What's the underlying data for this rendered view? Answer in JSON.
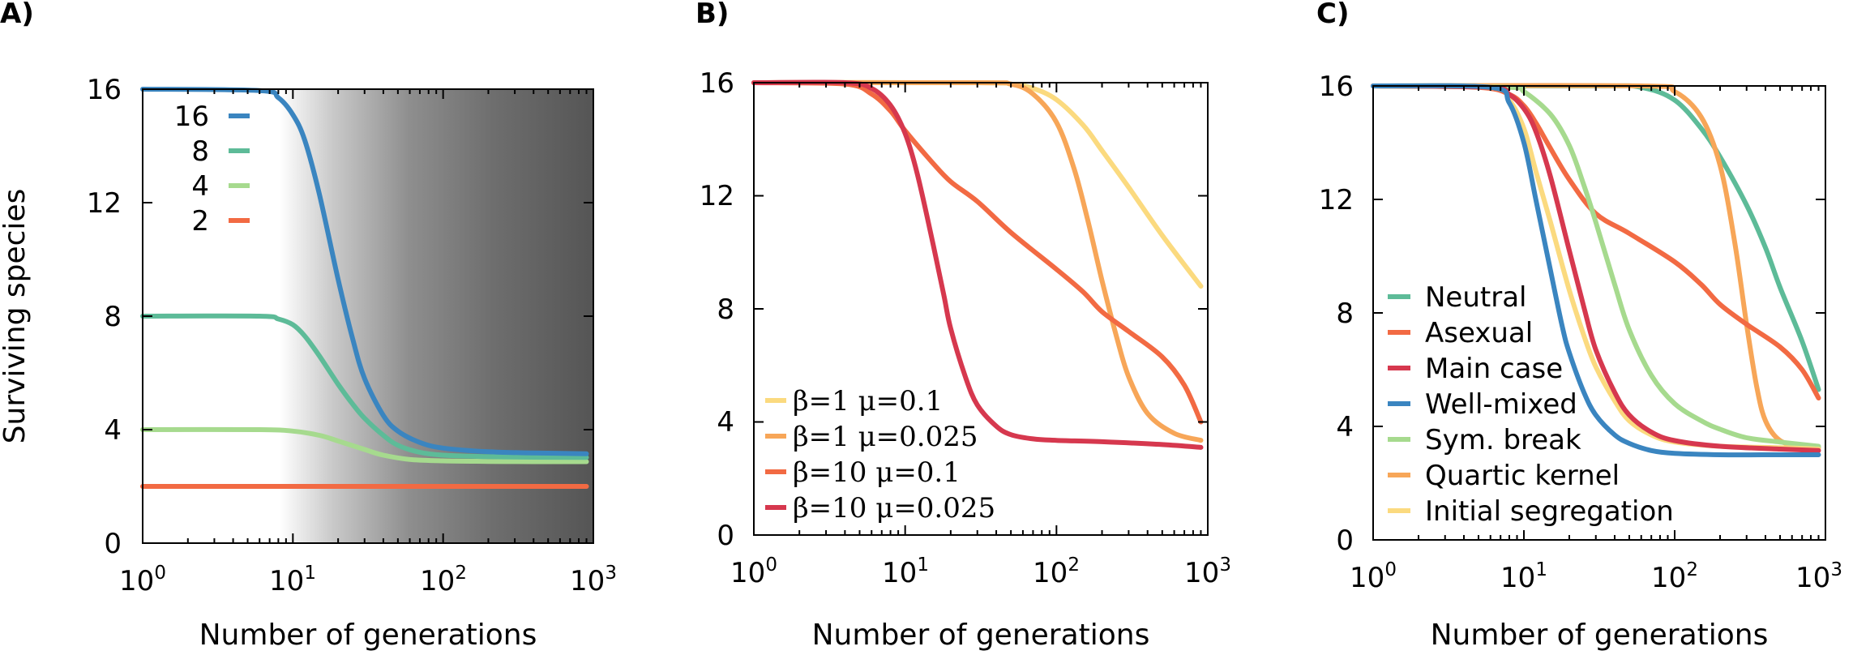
{
  "colors": {
    "blue": "#3a85c0",
    "teal": "#5dbb98",
    "light_green": "#a6da8e",
    "orange_red": "#f26a43",
    "red": "#d6384e",
    "orange": "#f7a658",
    "yellow": "#fbda7f"
  },
  "chart_data": [
    {
      "panel": "A)",
      "type": "line",
      "xscale": "log",
      "xlim": [
        1,
        1000
      ],
      "ylim": [
        0,
        16
      ],
      "xticks": [
        {
          "base": "10",
          "exp": "0"
        },
        {
          "base": "10",
          "exp": "1"
        },
        {
          "base": "10",
          "exp": "2"
        },
        {
          "base": "10",
          "exp": "3"
        }
      ],
      "yticks": [
        "0",
        "4",
        "8",
        "12",
        "16"
      ],
      "xlabel": "Number of generations",
      "ylabel": "Surviving species",
      "background": "grey gradient from white (x≈6) to dark grey (x=1000)",
      "legend_position": "top-left",
      "series": [
        {
          "name": "16",
          "color": "#3a85c0",
          "x": [
            1,
            6,
            8,
            10,
            12,
            15,
            20,
            25,
            30,
            40,
            50,
            70,
            100,
            200,
            400,
            900
          ],
          "y": [
            16,
            15.95,
            15.7,
            15.1,
            14.2,
            12.3,
            9.3,
            7.2,
            5.8,
            4.5,
            3.95,
            3.55,
            3.35,
            3.22,
            3.18,
            3.15
          ]
        },
        {
          "name": "8",
          "color": "#5dbb98",
          "x": [
            1,
            6,
            8,
            10,
            12,
            15,
            20,
            25,
            30,
            40,
            50,
            70,
            100,
            200,
            400,
            900
          ],
          "y": [
            8,
            8,
            7.9,
            7.7,
            7.3,
            6.6,
            5.6,
            4.9,
            4.4,
            3.8,
            3.45,
            3.2,
            3.1,
            3.05,
            3.03,
            3.02
          ]
        },
        {
          "name": "4",
          "color": "#a6da8e",
          "x": [
            1,
            6,
            10,
            15,
            20,
            30,
            40,
            60,
            100,
            200,
            400,
            900
          ],
          "y": [
            4,
            4,
            3.95,
            3.8,
            3.6,
            3.3,
            3.1,
            2.95,
            2.9,
            2.88,
            2.87,
            2.87
          ]
        },
        {
          "name": "2",
          "color": "#f26a43",
          "x": [
            1,
            900
          ],
          "y": [
            2,
            2
          ]
        }
      ]
    },
    {
      "panel": "B)",
      "type": "line",
      "xscale": "log",
      "xlim": [
        1,
        1000
      ],
      "ylim": [
        0,
        16
      ],
      "xticks": [
        {
          "base": "10",
          "exp": "0"
        },
        {
          "base": "10",
          "exp": "1"
        },
        {
          "base": "10",
          "exp": "2"
        },
        {
          "base": "10",
          "exp": "3"
        }
      ],
      "yticks": [
        "0",
        "4",
        "8",
        "12",
        "16"
      ],
      "xlabel": "Number of generations",
      "ylabel": "",
      "legend_position": "bottom-left",
      "series": [
        {
          "name": "β=1 μ=0.1",
          "color": "#fbda7f",
          "x": [
            1,
            30,
            50,
            70,
            100,
            150,
            200,
            300,
            500,
            900
          ],
          "y": [
            16,
            16,
            15.95,
            15.8,
            15.4,
            14.5,
            13.6,
            12.3,
            10.6,
            8.8
          ]
        },
        {
          "name": "β=1 μ=0.025",
          "color": "#f7a658",
          "x": [
            1,
            30,
            50,
            70,
            100,
            130,
            160,
            200,
            250,
            300,
            400,
            600,
            900
          ],
          "y": [
            16,
            16,
            15.95,
            15.6,
            14.6,
            13,
            11.2,
            9,
            7,
            5.6,
            4.3,
            3.6,
            3.35
          ]
        },
        {
          "name": "β=10 μ=0.1",
          "color": "#f26a43",
          "x": [
            1,
            4,
            6,
            8,
            10,
            15,
            20,
            30,
            50,
            100,
            150,
            200,
            300,
            500,
            700,
            900
          ],
          "y": [
            16,
            15.95,
            15.6,
            15,
            14.3,
            13.2,
            12.5,
            11.8,
            10.7,
            9.4,
            8.6,
            7.9,
            7.2,
            6.3,
            5.3,
            4
          ]
        },
        {
          "name": "β=10 μ=0.025",
          "color": "#d6384e",
          "x": [
            1,
            4,
            6,
            8,
            10,
            12,
            15,
            18,
            20,
            25,
            30,
            40,
            50,
            70,
            100,
            200,
            500,
            900
          ],
          "y": [
            16,
            16,
            15.8,
            15.2,
            14.2,
            12.8,
            10.5,
            8.5,
            7.3,
            5.6,
            4.6,
            3.85,
            3.55,
            3.4,
            3.35,
            3.3,
            3.2,
            3.1
          ]
        }
      ]
    },
    {
      "panel": "C)",
      "type": "line",
      "xscale": "log",
      "xlim": [
        1,
        1000
      ],
      "ylim": [
        0,
        16
      ],
      "xticks": [
        {
          "base": "10",
          "exp": "0"
        },
        {
          "base": "10",
          "exp": "1"
        },
        {
          "base": "10",
          "exp": "2"
        },
        {
          "base": "10",
          "exp": "3"
        }
      ],
      "yticks": [
        "0",
        "4",
        "8",
        "12",
        "16"
      ],
      "xlabel": "Number of generations",
      "ylabel": "",
      "legend_position": "lower-left",
      "series": [
        {
          "name": "Neutral",
          "color": "#5dbb98",
          "x": [
            1,
            30,
            60,
            100,
            150,
            200,
            300,
            400,
            500,
            700,
            900
          ],
          "y": [
            16,
            16,
            15.95,
            15.5,
            14.5,
            13.5,
            11.8,
            10.3,
            8.9,
            7,
            5.3
          ]
        },
        {
          "name": "Asexual",
          "color": "#f26a43",
          "x": [
            1,
            5,
            8,
            10,
            12,
            15,
            20,
            30,
            50,
            100,
            150,
            200,
            300,
            500,
            700,
            900
          ],
          "y": [
            16,
            15.95,
            15.7,
            15.3,
            14.7,
            13.8,
            12.7,
            11.5,
            10.8,
            9.8,
            9,
            8.3,
            7.6,
            6.8,
            6,
            5
          ]
        },
        {
          "name": "Main case",
          "color": "#d6384e",
          "x": [
            1,
            6,
            8,
            10,
            12,
            15,
            20,
            25,
            30,
            40,
            50,
            70,
            100,
            200,
            500,
            900
          ],
          "y": [
            16,
            15.95,
            15.7,
            15.2,
            14.4,
            12.8,
            10.2,
            8.2,
            6.7,
            5.2,
            4.4,
            3.8,
            3.5,
            3.3,
            3.2,
            3.15
          ]
        },
        {
          "name": "Well-mixed",
          "color": "#3a85c0",
          "x": [
            1,
            6,
            8,
            10,
            12,
            15,
            18,
            20,
            25,
            30,
            40,
            50,
            70,
            100,
            200,
            500,
            900
          ],
          "y": [
            16,
            15.95,
            15.4,
            14,
            12,
            9.5,
            7.5,
            6.6,
            5.2,
            4.4,
            3.7,
            3.4,
            3.15,
            3.05,
            3,
            3,
            3
          ]
        },
        {
          "name": "Sym. break",
          "color": "#a6da8e",
          "x": [
            1,
            8,
            10,
            15,
            20,
            25,
            30,
            40,
            50,
            70,
            100,
            150,
            200,
            300,
            500,
            900
          ],
          "y": [
            16,
            15.95,
            15.8,
            15,
            13.9,
            12.5,
            11.2,
            9,
            7.4,
            5.8,
            4.8,
            4.2,
            3.9,
            3.6,
            3.45,
            3.3
          ]
        },
        {
          "name": "Quartic kernel",
          "color": "#f7a658",
          "x": [
            1,
            60,
            100,
            150,
            200,
            250,
            300,
            350,
            400,
            500,
            700,
            900
          ],
          "y": [
            16,
            16,
            15.8,
            14.9,
            13.2,
            10.5,
            7.6,
            5.4,
            4.2,
            3.5,
            3.3,
            3.25
          ]
        },
        {
          "name": "Initial segregation",
          "color": "#fbda7f",
          "x": [
            1,
            6,
            8,
            10,
            12,
            15,
            20,
            25,
            30,
            40,
            50,
            70,
            100,
            200,
            500,
            900
          ],
          "y": [
            16,
            15.95,
            15.5,
            14.5,
            13,
            11.2,
            8.8,
            7.2,
            6.1,
            4.9,
            4.2,
            3.7,
            3.45,
            3.3,
            3.25,
            3.2
          ]
        }
      ]
    }
  ]
}
